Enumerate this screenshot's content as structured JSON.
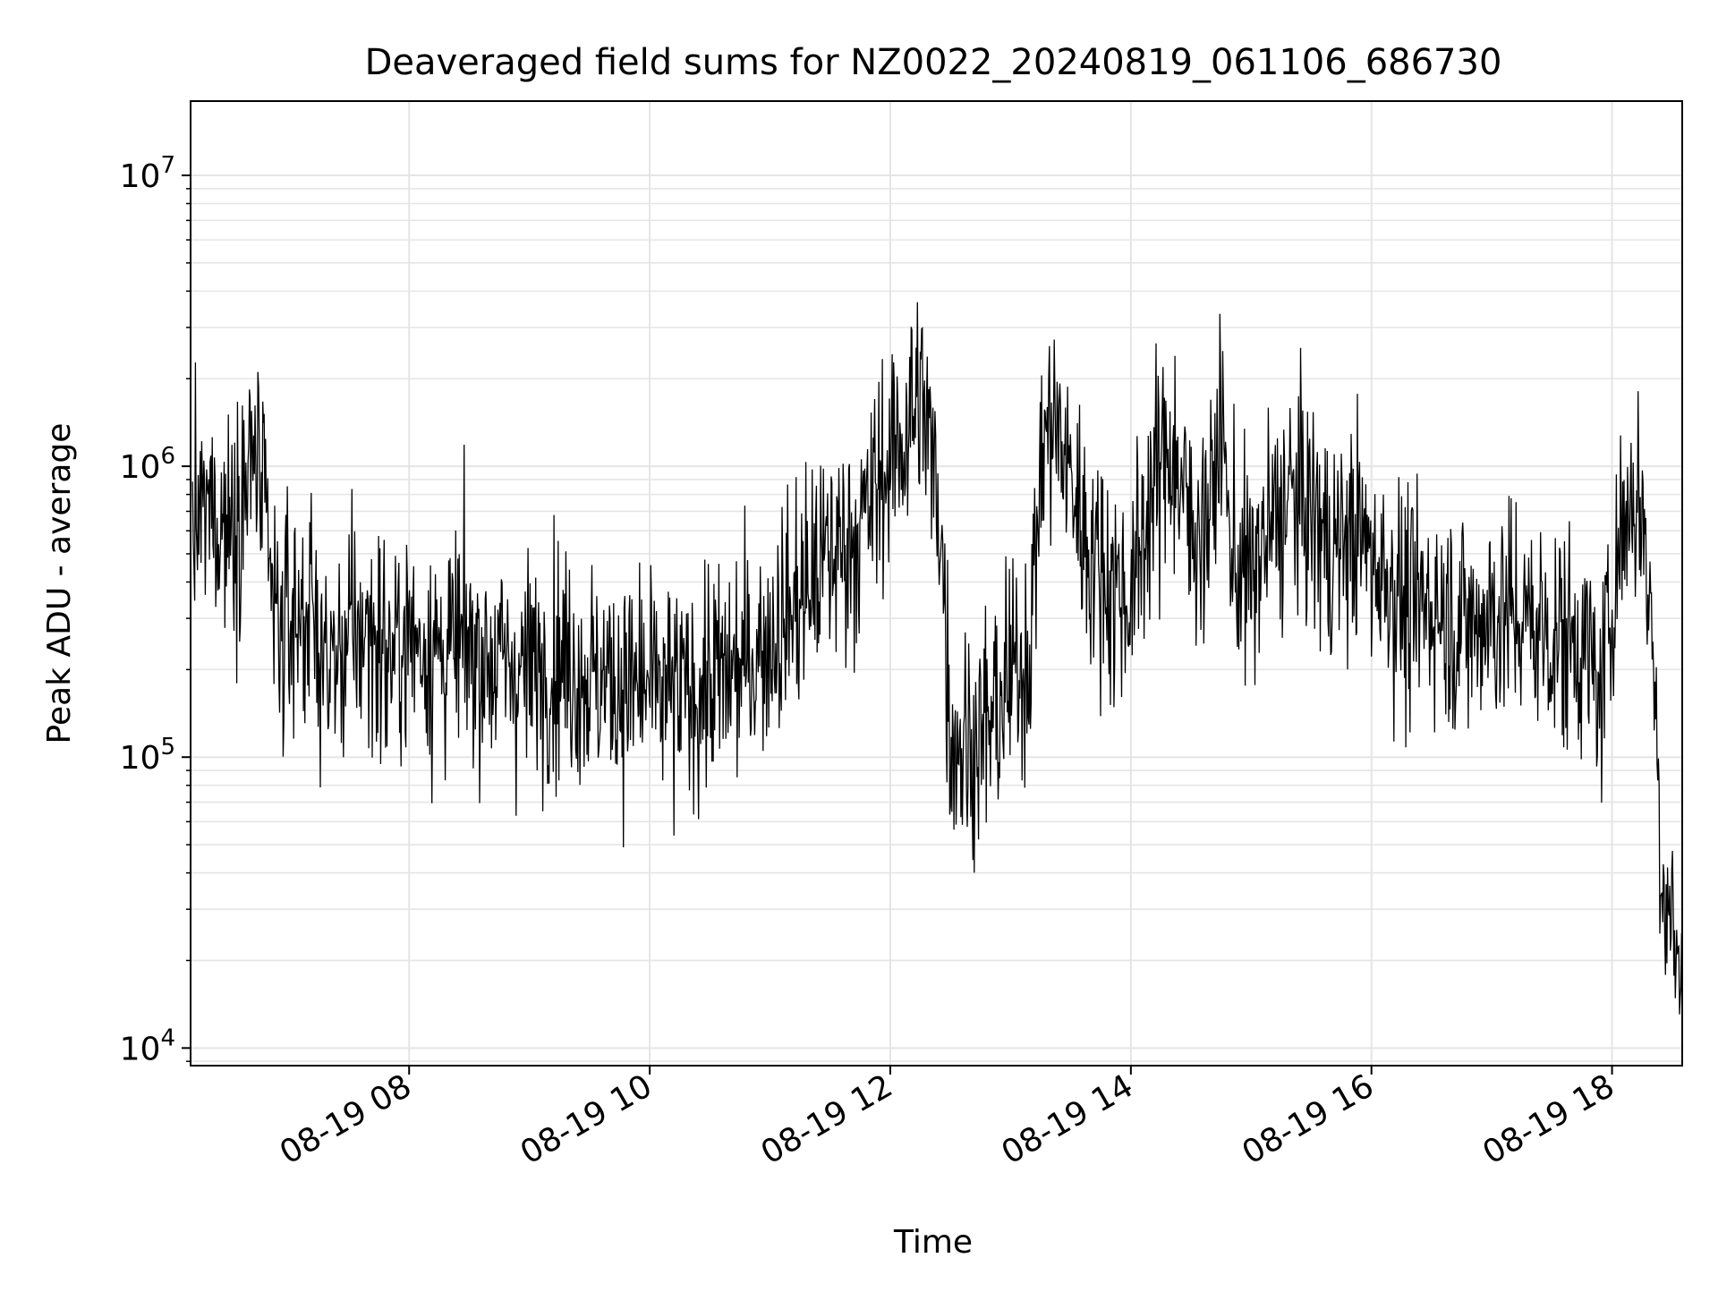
{
  "chart_data": {
    "type": "line",
    "title": "Deaveraged field sums for NZ0022_20240819_061106_686730",
    "xlabel": "Time",
    "ylabel": "Peak ADU - average",
    "xlim": [
      "2024-08-19 06:11",
      "2024-08-19 18:35"
    ],
    "ylim": [
      8700,
      18000000
    ],
    "yscale": "log",
    "grid": true,
    "x_ticks": [
      "08-19 08",
      "08-19 10",
      "08-19 12",
      "08-19 14",
      "08-19 16",
      "08-19 18"
    ],
    "y_ticks": [
      {
        "base": "10",
        "exp": "4",
        "value": 10000
      },
      {
        "base": "10",
        "exp": "5",
        "value": 100000
      },
      {
        "base": "10",
        "exp": "6",
        "value": 1000000
      },
      {
        "base": "10",
        "exp": "7",
        "value": 10000000
      }
    ],
    "line_color": "#000000",
    "series": [
      {
        "x": [
          "06:12",
          "06:20",
          "06:30",
          "06:40",
          "06:43",
          "06:50",
          "06:55",
          "07:00",
          "07:10",
          "07:20",
          "07:30",
          "07:40",
          "07:50",
          "08:00",
          "08:15",
          "08:30",
          "08:45",
          "09:00",
          "09:15",
          "09:30",
          "09:45",
          "10:00",
          "10:15",
          "10:30",
          "10:45",
          "11:00",
          "11:15",
          "11:30",
          "11:45",
          "11:55",
          "12:05",
          "12:15",
          "12:25",
          "12:30",
          "12:40",
          "12:50",
          "13:00",
          "13:10",
          "13:15",
          "13:20",
          "13:30",
          "13:40",
          "13:50",
          "14:00",
          "14:10",
          "14:20",
          "14:30",
          "14:40",
          "14:45",
          "14:50",
          "15:00",
          "15:10",
          "15:20",
          "15:30",
          "15:40",
          "15:50",
          "16:00",
          "16:10",
          "16:20",
          "16:30",
          "16:40",
          "16:50",
          "17:00",
          "17:15",
          "17:30",
          "17:45",
          "17:55",
          "18:00",
          "18:05",
          "18:10",
          "18:15",
          "18:20",
          "18:25",
          "18:30",
          "18:35"
        ],
        "y": [
          600000,
          700000,
          650000,
          900000,
          1200000,
          450000,
          250000,
          300000,
          320000,
          200000,
          250000,
          280000,
          220000,
          260000,
          230000,
          240000,
          210000,
          200000,
          220000,
          190000,
          180000,
          170000,
          160000,
          180000,
          200000,
          260000,
          350000,
          500000,
          600000,
          900000,
          1200000,
          1800000,
          700000,
          120000,
          110000,
          130000,
          180000,
          250000,
          1000000,
          1500000,
          900000,
          500000,
          400000,
          350000,
          800000,
          1200000,
          600000,
          700000,
          1500000,
          500000,
          400000,
          600000,
          800000,
          700000,
          500000,
          600000,
          500000,
          400000,
          300000,
          350000,
          300000,
          280000,
          320000,
          300000,
          260000,
          250000,
          160000,
          380000,
          600000,
          800000,
          700000,
          280000,
          40000,
          28000,
          14000
        ]
      }
    ]
  }
}
